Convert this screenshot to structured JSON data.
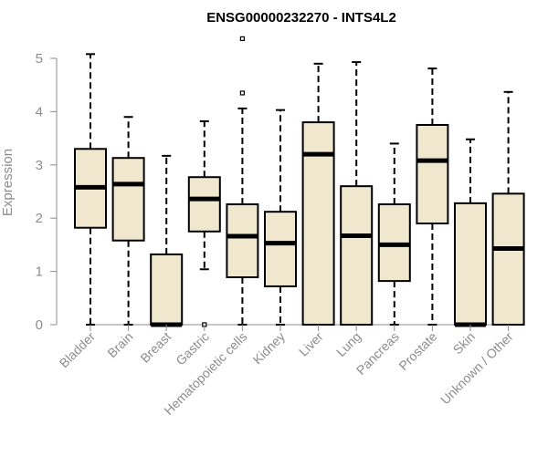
{
  "chart_data": {
    "type": "box",
    "title": "ENSG00000232270 - INTS4L2",
    "ylabel": "Expression",
    "xlabel": "",
    "ylim": [
      0,
      5.4
    ],
    "yticks": [
      0,
      1,
      2,
      3,
      4,
      5
    ],
    "grid": false,
    "box_fill": "#efe8cf",
    "categories": [
      "Bladder",
      "Brain",
      "Breast",
      "Gastric",
      "Hematopoietic cells",
      "Kidney",
      "Liver",
      "Lung",
      "Pancreas",
      "Prostate",
      "Skin",
      "Unknown / Other"
    ],
    "boxes": [
      {
        "min": 0.0,
        "q1": 1.82,
        "median": 2.58,
        "q3": 3.3,
        "max": 5.08,
        "outliers": []
      },
      {
        "min": 0.0,
        "q1": 1.58,
        "median": 2.64,
        "q3": 3.13,
        "max": 3.9,
        "outliers": []
      },
      {
        "min": 0.0,
        "q1": 0.0,
        "median": 0.0,
        "q3": 1.32,
        "max": 3.17,
        "outliers": []
      },
      {
        "min": 1.04,
        "q1": 1.75,
        "median": 2.36,
        "q3": 2.77,
        "max": 3.82,
        "outliers": [
          0.0
        ]
      },
      {
        "min": 0.0,
        "q1": 0.89,
        "median": 1.66,
        "q3": 2.26,
        "max": 4.06,
        "outliers": [
          4.35,
          5.37
        ]
      },
      {
        "min": 0.0,
        "q1": 0.72,
        "median": 1.53,
        "q3": 2.12,
        "max": 4.03,
        "outliers": []
      },
      {
        "min": 0.0,
        "q1": 0.0,
        "median": 3.2,
        "q3": 3.8,
        "max": 4.9,
        "outliers": []
      },
      {
        "min": 0.0,
        "q1": 0.0,
        "median": 1.67,
        "q3": 2.6,
        "max": 4.93,
        "outliers": []
      },
      {
        "min": 0.0,
        "q1": 0.82,
        "median": 1.5,
        "q3": 2.26,
        "max": 3.4,
        "outliers": []
      },
      {
        "min": 0.0,
        "q1": 1.9,
        "median": 3.08,
        "q3": 3.75,
        "max": 4.81,
        "outliers": []
      },
      {
        "min": 0.0,
        "q1": 0.0,
        "median": 0.0,
        "q3": 2.28,
        "max": 3.48,
        "outliers": []
      },
      {
        "min": 0.0,
        "q1": 0.0,
        "median": 1.43,
        "q3": 2.46,
        "max": 4.37,
        "outliers": []
      }
    ]
  }
}
